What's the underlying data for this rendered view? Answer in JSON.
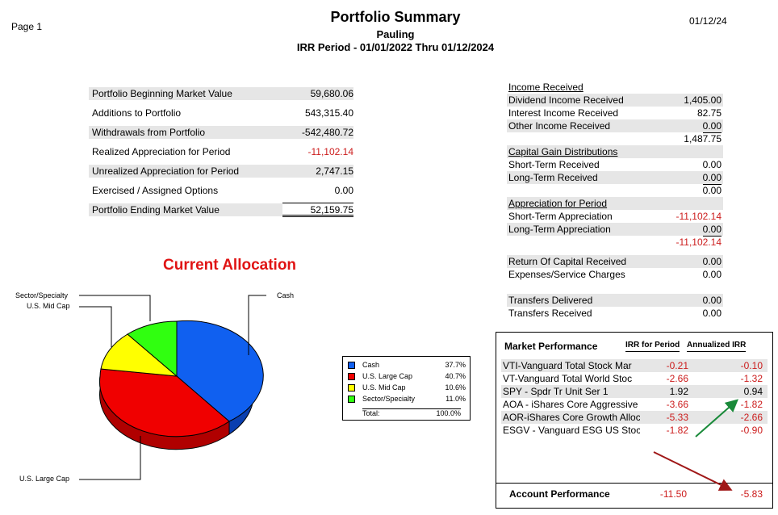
{
  "header": {
    "page_label": "Page  1",
    "title": "Portfolio Summary",
    "client": "Pauling",
    "period": "IRR Period - 01/01/2022 Thru 01/12/2024",
    "date": "01/12/24"
  },
  "summary": {
    "rows": [
      {
        "label": "Portfolio Beginning Market Value",
        "value": "59,680.06"
      },
      {
        "label": "Additions to Portfolio",
        "value": "543,315.40"
      },
      {
        "label": "Withdrawals from Portfolio",
        "value": "-542,480.72"
      },
      {
        "label": "Realized Appreciation for Period",
        "value": "-11,102.14"
      },
      {
        "label": "Unrealized Appreciation for Period",
        "value": "2,747.15"
      },
      {
        "label": "Exercised / Assigned Options",
        "value": "0.00"
      },
      {
        "label": "Portfolio Ending Market Value",
        "value": "52,159.75"
      }
    ]
  },
  "allocation": {
    "title": "Current Allocation",
    "labels": {
      "cash": "Cash",
      "large": "U.S. Large Cap",
      "mid": "U.S. Mid Cap",
      "sector": "Sector/Specialty"
    },
    "legend": [
      {
        "name": "Cash",
        "value": "37.7%"
      },
      {
        "name": "U.S. Large Cap",
        "value": "40.7%"
      },
      {
        "name": "U.S. Mid Cap",
        "value": "10.6%"
      },
      {
        "name": "Sector/Specialty",
        "value": "11.0%"
      }
    ],
    "total_label": "Total:",
    "total_value": "100.0%",
    "colors": {
      "cash": "#1060f0",
      "large": "#f00000",
      "mid": "#ffff00",
      "sector": "#30ff10"
    }
  },
  "chart_data": {
    "type": "pie",
    "title": "Current Allocation",
    "categories": [
      "Cash",
      "U.S. Large Cap",
      "U.S. Mid Cap",
      "Sector/Specialty"
    ],
    "values": [
      37.7,
      40.7,
      10.6,
      11.0
    ]
  },
  "income": {
    "income_header": "Income Received",
    "dividend": {
      "label": "Dividend Income Received",
      "value": "1,405.00"
    },
    "interest": {
      "label": "Interest Income Received",
      "value": "82.75"
    },
    "other": {
      "label": "Other Income Received",
      "value": "0.00"
    },
    "income_total": "1,487.75",
    "cap_header": "Capital Gain Distributions",
    "short_received": {
      "label": "Short-Term Received",
      "value": "0.00"
    },
    "long_received": {
      "label": "Long-Term Received",
      "value": "0.00"
    },
    "cap_total": "0.00",
    "app_header": "Appreciation for Period",
    "short_app": {
      "label": "Short-Term Appreciation",
      "value": "-11,102.14"
    },
    "long_app": {
      "label": "Long-Term Appreciation",
      "value": "0.00"
    },
    "app_total": "-11,102.14",
    "return_capital": {
      "label": "Return Of Capital Received",
      "value": "0.00"
    },
    "expenses": {
      "label": "Expenses/Service Charges",
      "value": "0.00"
    },
    "transfers_delivered": {
      "label": "Transfers Delivered",
      "value": "0.00"
    },
    "transfers_received": {
      "label": "Transfers Received",
      "value": "0.00"
    }
  },
  "market": {
    "title": "Market Performance",
    "col_irr": "IRR for Period",
    "col_ann": "Annualized IRR",
    "rows": [
      {
        "name": "VTI-Vanguard Total Stock Mar",
        "irr": "-0.21",
        "ann": "-0.10"
      },
      {
        "name": "VT-Vanguard Total World Stoc",
        "irr": "-2.66",
        "ann": "-1.32"
      },
      {
        "name": "SPY - Spdr Tr Unit Ser 1",
        "irr": "1.92",
        "ann": "0.94"
      },
      {
        "name": "AOA - iShares Core Aggressive",
        "irr": "-3.66",
        "ann": "-1.82"
      },
      {
        "name": "AOR-iShares Core Growth Alloc",
        "irr": "-5.33",
        "ann": "-2.66"
      },
      {
        "name": "ESGV - Vanguard ESG US Stoc",
        "irr": "-1.82",
        "ann": "-0.90"
      }
    ],
    "account_label": "Account Performance",
    "account_irr": "-11.50",
    "account_ann": "-5.83"
  }
}
